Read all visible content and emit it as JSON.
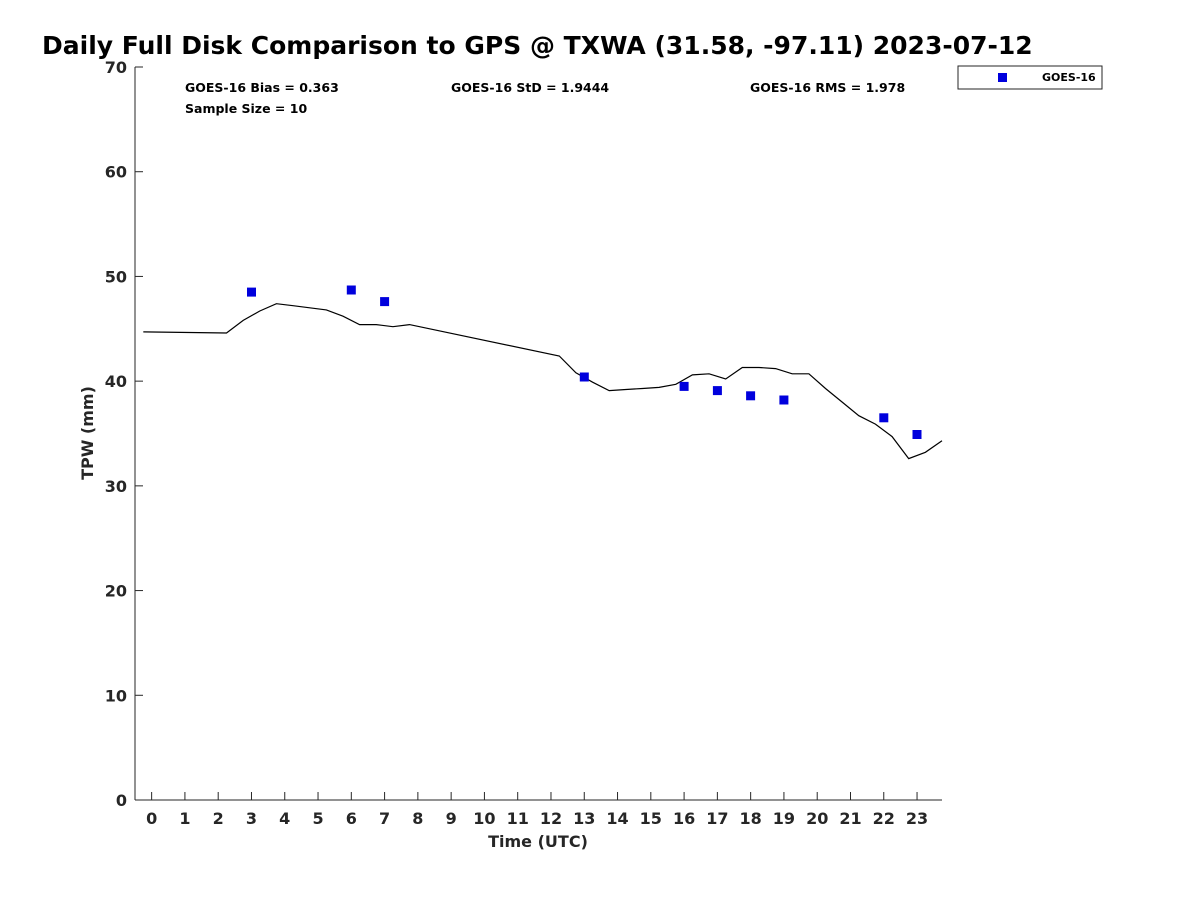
{
  "chart_data": {
    "type": "scatter",
    "title": "Daily Full Disk Comparison to GPS @ TXWA (31.58, -97.11) 2023-07-12",
    "xlabel": "Time (UTC)",
    "ylabel": "TPW (mm)",
    "xlim": [
      -0.5,
      23.75
    ],
    "ylim": [
      0,
      70
    ],
    "x_ticks": [
      0,
      1,
      2,
      3,
      4,
      5,
      6,
      7,
      8,
      9,
      10,
      11,
      12,
      13,
      14,
      15,
      16,
      17,
      18,
      19,
      20,
      21,
      22,
      23
    ],
    "y_ticks": [
      0,
      10,
      20,
      30,
      40,
      50,
      60,
      70
    ],
    "grid": false,
    "legend_position": "outside-top-right",
    "stats": {
      "bias": "GOES-16 Bias = 0.363",
      "std": "GOES-16 StD = 1.9444",
      "rms": "GOES-16 RMS = 1.978",
      "sample": "Sample Size = 10"
    },
    "series": [
      {
        "name": "GOES-16",
        "kind": "scatter",
        "color": "#0000dd",
        "marker": "square",
        "x": [
          3,
          6,
          7,
          13,
          16,
          17,
          18,
          19,
          22,
          23
        ],
        "y": [
          48.5,
          48.7,
          47.6,
          40.4,
          39.5,
          39.1,
          38.6,
          38.2,
          36.5,
          34.9
        ]
      },
      {
        "kind": "line",
        "color": "#000000",
        "x": [
          -0.25,
          2.25,
          2.75,
          3.25,
          3.75,
          4.25,
          4.75,
          5.25,
          5.75,
          6.25,
          6.75,
          7.25,
          7.75,
          12.25,
          12.75,
          13.25,
          13.75,
          14.25,
          14.75,
          15.25,
          15.75,
          16.25,
          16.75,
          17.25,
          17.75,
          18.25,
          18.75,
          19.25,
          19.75,
          20.25,
          20.75,
          21.25,
          21.75,
          22.25,
          22.75,
          23.25,
          23.75
        ],
        "y": [
          44.7,
          44.6,
          45.8,
          46.7,
          47.4,
          47.2,
          47.0,
          46.8,
          46.2,
          45.4,
          45.4,
          45.2,
          45.4,
          42.4,
          40.8,
          39.9,
          39.1,
          39.2,
          39.3,
          39.4,
          39.7,
          40.6,
          40.7,
          40.2,
          41.3,
          41.3,
          41.2,
          40.7,
          40.7,
          39.3,
          38.0,
          36.7,
          35.9,
          34.7,
          32.6,
          33.2,
          34.3
        ]
      }
    ]
  }
}
